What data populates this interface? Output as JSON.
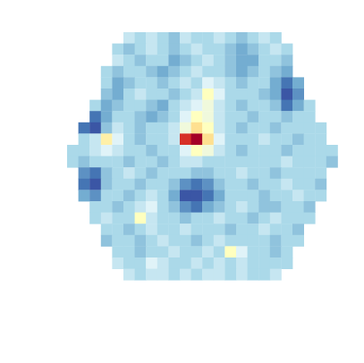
{
  "chart_data": {
    "type": "heatmap",
    "tick_labels": false,
    "zlim": [
      0,
      1
    ],
    "cells": [
      [
        null,
        null,
        null,
        null,
        null,
        0.35,
        0.3,
        0.35,
        0.3,
        0.25,
        0.35,
        0.3,
        0.3,
        0.35,
        0.3,
        0.25,
        0.3,
        0.35,
        0.3,
        null,
        null,
        null,
        null,
        null
      ],
      [
        null,
        null,
        null,
        null,
        0.3,
        0.25,
        0.3,
        0.35,
        0.3,
        0.25,
        0.3,
        0.35,
        0.3,
        0.3,
        0.25,
        0.2,
        0.25,
        0.3,
        0.35,
        0.3,
        null,
        null,
        null,
        null
      ],
      [
        null,
        null,
        null,
        null,
        0.35,
        0.3,
        0.25,
        0.3,
        0.3,
        0.2,
        0.25,
        0.3,
        0.35,
        0.3,
        0.25,
        0.2,
        0.2,
        0.3,
        0.3,
        0.25,
        null,
        null,
        null,
        null
      ],
      [
        null,
        null,
        null,
        0.3,
        0.25,
        0.3,
        0.3,
        0.25,
        0.2,
        0.25,
        0.3,
        0.35,
        0.3,
        0.3,
        0.25,
        0.2,
        0.25,
        0.3,
        0.25,
        0.2,
        null,
        null,
        null,
        null
      ],
      [
        null,
        null,
        null,
        0.3,
        0.2,
        0.25,
        0.3,
        0.3,
        0.25,
        0.3,
        0.35,
        0.3,
        0.4,
        0.35,
        0.3,
        0.25,
        0.3,
        0.3,
        0.2,
        0.1,
        0.2,
        null,
        null,
        null
      ],
      [
        null,
        null,
        null,
        0.25,
        0.2,
        0.3,
        0.35,
        0.3,
        0.3,
        0.25,
        0.3,
        0.35,
        0.5,
        0.4,
        0.3,
        0.3,
        0.3,
        0.25,
        0.2,
        0.05,
        0.15,
        null,
        null,
        null
      ],
      [
        null,
        null,
        0.3,
        0.2,
        0.25,
        0.3,
        0.3,
        0.25,
        0.2,
        0.3,
        0.35,
        0.4,
        0.45,
        0.35,
        0.3,
        0.25,
        0.3,
        0.3,
        0.25,
        0.1,
        0.2,
        0.3,
        null,
        null
      ],
      [
        null,
        null,
        0.1,
        0.2,
        0.3,
        0.3,
        0.25,
        0.2,
        0.25,
        0.3,
        0.4,
        0.5,
        0.45,
        0.35,
        0.3,
        0.3,
        0.25,
        0.3,
        0.3,
        0.25,
        0.3,
        0.3,
        null,
        null
      ],
      [
        null,
        0.1,
        0.05,
        0.25,
        0.35,
        0.3,
        0.25,
        0.3,
        0.3,
        0.35,
        0.45,
        0.6,
        0.5,
        0.35,
        0.3,
        0.25,
        0.3,
        0.3,
        0.25,
        0.3,
        0.3,
        0.3,
        0.3,
        null
      ],
      [
        null,
        0.3,
        0.35,
        0.55,
        0.4,
        0.3,
        0.25,
        0.3,
        0.3,
        0.35,
        0.9,
        1.0,
        0.6,
        0.4,
        0.3,
        0.3,
        0.3,
        0.35,
        0.3,
        0.3,
        0.25,
        0.3,
        0.3,
        null
      ],
      [
        0.3,
        0.3,
        0.35,
        0.4,
        0.35,
        0.3,
        0.3,
        0.25,
        0.3,
        0.3,
        0.4,
        0.5,
        0.45,
        0.35,
        0.3,
        0.25,
        0.3,
        0.3,
        0.3,
        0.25,
        0.3,
        0.3,
        0.3,
        0.3
      ],
      [
        0.3,
        0.25,
        0.3,
        0.3,
        0.3,
        0.25,
        0.3,
        0.3,
        0.25,
        0.3,
        0.35,
        0.35,
        0.3,
        0.3,
        0.3,
        0.3,
        0.3,
        0.3,
        0.3,
        0.35,
        0.3,
        0.3,
        0.3,
        0.25
      ],
      [
        null,
        0.15,
        0.1,
        0.25,
        0.3,
        0.35,
        0.3,
        0.25,
        0.3,
        0.3,
        0.3,
        0.25,
        0.25,
        0.3,
        0.3,
        0.35,
        0.3,
        0.3,
        0.25,
        0.3,
        0.3,
        0.3,
        0.3,
        null
      ],
      [
        null,
        0.1,
        0.05,
        0.25,
        0.3,
        0.3,
        0.25,
        0.3,
        0.3,
        0.25,
        0.15,
        0.1,
        0.15,
        0.25,
        0.3,
        0.3,
        0.25,
        0.3,
        0.3,
        0.35,
        0.3,
        0.3,
        0.25,
        null
      ],
      [
        null,
        0.2,
        0.15,
        0.3,
        0.3,
        0.25,
        0.3,
        0.35,
        0.3,
        0.2,
        0.05,
        0.05,
        0.1,
        0.2,
        0.3,
        0.3,
        0.3,
        0.25,
        0.3,
        0.3,
        0.35,
        0.3,
        0.3,
        null
      ],
      [
        null,
        null,
        0.3,
        0.3,
        0.25,
        0.3,
        0.35,
        0.4,
        0.3,
        0.25,
        0.15,
        0.1,
        0.2,
        0.25,
        0.3,
        0.35,
        0.3,
        0.25,
        0.25,
        0.3,
        0.3,
        0.25,
        null,
        null
      ],
      [
        null,
        null,
        0.3,
        0.35,
        0.3,
        0.3,
        0.5,
        0.35,
        0.3,
        0.3,
        0.25,
        0.3,
        0.3,
        0.35,
        0.3,
        0.3,
        0.25,
        0.3,
        0.35,
        0.3,
        0.3,
        0.3,
        null,
        null
      ],
      [
        null,
        null,
        null,
        0.3,
        0.3,
        0.25,
        0.3,
        0.35,
        0.3,
        0.3,
        0.35,
        0.3,
        0.3,
        0.3,
        0.25,
        0.3,
        0.3,
        0.35,
        0.3,
        0.3,
        0.25,
        null,
        null,
        null
      ],
      [
        null,
        null,
        null,
        0.25,
        0.3,
        0.3,
        0.25,
        0.3,
        0.35,
        0.3,
        0.3,
        0.25,
        0.3,
        0.35,
        0.3,
        0.3,
        0.3,
        0.3,
        0.25,
        0.3,
        0.3,
        null,
        null,
        null
      ],
      [
        null,
        null,
        null,
        null,
        0.3,
        0.3,
        0.25,
        0.3,
        0.3,
        0.35,
        0.3,
        0.3,
        0.35,
        0.3,
        0.5,
        0.4,
        0.3,
        0.3,
        0.25,
        0.3,
        null,
        null,
        null,
        null
      ],
      [
        null,
        null,
        null,
        null,
        0.35,
        0.3,
        0.3,
        0.4,
        0.35,
        0.3,
        0.3,
        0.35,
        0.3,
        0.35,
        0.3,
        0.35,
        0.3,
        0.3,
        0.3,
        0.3,
        null,
        null,
        null,
        null
      ],
      [
        null,
        null,
        null,
        null,
        null,
        0.35,
        0.3,
        0.35,
        0.35,
        0.3,
        0.35,
        0.3,
        0.35,
        0.35,
        0.3,
        0.35,
        0.3,
        0.3,
        0.35,
        null,
        null,
        null,
        null,
        null
      ]
    ]
  }
}
